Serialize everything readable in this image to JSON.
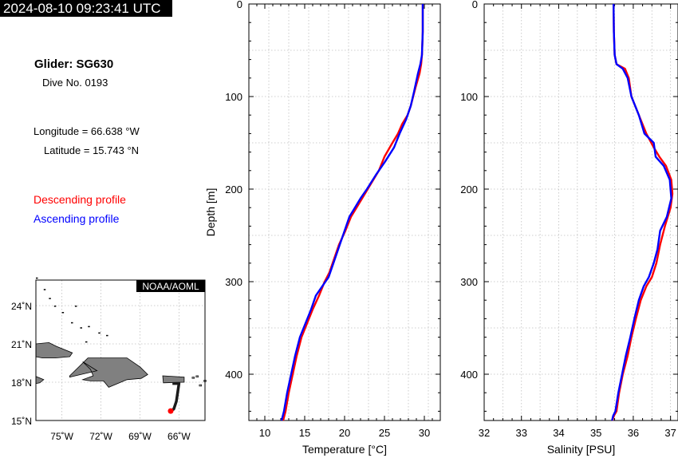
{
  "timestamp": "2024-08-10 09:23:41 UTC",
  "info": {
    "glider": "Glider: SG630",
    "dive": "Dive No. 0193",
    "longitude": "Longitude = 66.638 °W",
    "latitude": "Latitude = 15.743 °N"
  },
  "legend": {
    "descending": "Descending profile",
    "ascending": "Ascending profile"
  },
  "colors": {
    "descending": "#ff0000",
    "ascending": "#0000ff",
    "land": "#808080",
    "track": "#1a1a1a",
    "position": "#ff0000"
  },
  "map": {
    "badge": "NOAA/AOML",
    "lat_labels": [
      "24˚N",
      "21˚N",
      "18˚N",
      "15˚N"
    ],
    "lat_values": [
      24,
      21,
      18,
      15
    ],
    "lon_labels": [
      "75˚W",
      "72˚W",
      "69˚W",
      "66˚W"
    ],
    "lon_values": [
      -75,
      -72,
      -69,
      -66
    ],
    "xlim": [
      -77,
      -64
    ],
    "ylim": [
      15,
      26
    ],
    "track": [
      [
        -66.5,
        17.9
      ],
      [
        -66.0,
        17.9
      ],
      [
        -66.2,
        16.5
      ],
      [
        -66.4,
        15.9
      ],
      [
        -66.638,
        15.743
      ]
    ],
    "position": [
      -66.638,
      15.743
    ],
    "track_label": "glider track",
    "position_label": "current position"
  },
  "chart_data": [
    {
      "type": "line",
      "xlabel": "Temperature [°C]",
      "ylabel": "Depth [m]",
      "xlim": [
        8,
        32
      ],
      "ylim": [
        450,
        0
      ],
      "xticks": [
        10,
        15,
        20,
        25,
        30
      ],
      "yticks": [
        0,
        100,
        200,
        300,
        400
      ],
      "grid": true,
      "series": [
        {
          "name": "Descending profile",
          "x": [
            29.8,
            29.8,
            29.7,
            29.6,
            29.4,
            28.9,
            28.6,
            28.3,
            27.9,
            27.2,
            26.7,
            26.0,
            25.0,
            24.3,
            23.6,
            22.9,
            22.2,
            21.5,
            20.8,
            20.1,
            19.3,
            18.7,
            18.1,
            17.5,
            16.8,
            16.0,
            15.3,
            14.6,
            14.0,
            13.5,
            13.0,
            12.6,
            12.3
          ],
          "y": [
            0,
            30,
            55,
            65,
            75,
            90,
            100,
            110,
            120,
            130,
            140,
            150,
            165,
            180,
            190,
            200,
            210,
            220,
            230,
            245,
            260,
            275,
            290,
            300,
            315,
            330,
            345,
            360,
            380,
            400,
            420,
            440,
            450
          ]
        },
        {
          "name": "Ascending profile",
          "x": [
            29.8,
            29.8,
            29.7,
            29.5,
            29.2,
            28.7,
            28.3,
            27.7,
            26.9,
            26.2,
            25.1,
            23.9,
            22.8,
            22.0,
            21.3,
            20.6,
            19.8,
            19.2,
            18.6,
            18.0,
            17.2,
            16.4,
            15.8,
            15.1,
            14.4,
            13.8,
            13.3,
            12.8,
            12.4,
            12.1
          ],
          "y": [
            0,
            30,
            55,
            65,
            75,
            95,
            110,
            125,
            140,
            155,
            170,
            185,
            200,
            210,
            220,
            230,
            250,
            265,
            280,
            295,
            305,
            315,
            330,
            345,
            360,
            380,
            400,
            420,
            440,
            450
          ]
        }
      ]
    },
    {
      "type": "line",
      "xlabel": "Salinity [PSU]",
      "ylabel": "",
      "xlim": [
        32,
        37.2
      ],
      "ylim": [
        450,
        0
      ],
      "xticks": [
        32,
        33,
        34,
        35,
        36,
        37
      ],
      "yticks": [
        0,
        100,
        200,
        300,
        400
      ],
      "grid": true,
      "series": [
        {
          "name": "Descending profile",
          "x": [
            35.47,
            35.48,
            35.5,
            35.55,
            35.78,
            35.88,
            35.95,
            36.15,
            36.35,
            36.55,
            36.7,
            36.88,
            37.02,
            37.05,
            37.0,
            36.85,
            36.72,
            36.62,
            36.5,
            36.35,
            36.2,
            36.07,
            35.95,
            35.85,
            35.72,
            35.62,
            35.55,
            35.48,
            35.44
          ],
          "y": [
            0,
            30,
            55,
            65,
            70,
            80,
            100,
            120,
            140,
            155,
            165,
            175,
            190,
            205,
            220,
            240,
            260,
            280,
            295,
            305,
            320,
            340,
            360,
            380,
            400,
            420,
            440,
            445,
            450
          ]
        },
        {
          "name": "Ascending profile",
          "x": [
            35.47,
            35.48,
            35.5,
            35.55,
            35.72,
            35.85,
            35.95,
            36.15,
            36.3,
            36.55,
            36.6,
            36.82,
            36.98,
            37.02,
            36.9,
            36.72,
            36.65,
            36.55,
            36.42,
            36.28,
            36.15,
            36.03,
            35.92,
            35.8,
            35.7,
            35.6,
            35.52,
            35.46,
            35.43
          ],
          "y": [
            0,
            30,
            55,
            65,
            70,
            80,
            100,
            120,
            140,
            150,
            165,
            175,
            190,
            210,
            230,
            245,
            265,
            280,
            295,
            305,
            320,
            340,
            360,
            380,
            400,
            420,
            440,
            445,
            450
          ]
        }
      ]
    }
  ]
}
